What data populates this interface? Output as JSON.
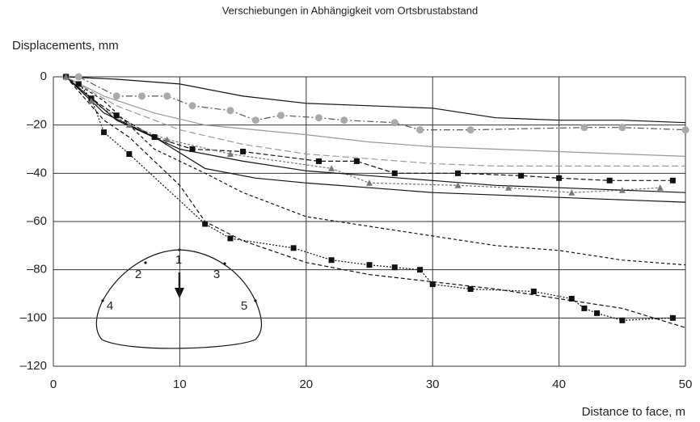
{
  "chart_data": {
    "type": "line",
    "title": "Verschiebungen in Abhängigkeit vom Ortsbrustabstand",
    "y_label": "Displacements, mm",
    "x_label": "Distance to face, m",
    "xlim": [
      0,
      50
    ],
    "ylim": [
      -120,
      0
    ],
    "xticks": [
      0,
      10,
      20,
      30,
      40,
      50
    ],
    "yticks": [
      0,
      {
        "value": -20,
        "label": "–20"
      },
      {
        "value": -40,
        "label": "–40"
      },
      {
        "value": -60,
        "label": "–60"
      },
      {
        "value": -80,
        "label": "–80"
      },
      {
        "value": -100,
        "label": "–100"
      },
      {
        "value": -120,
        "label": "–120"
      }
    ],
    "grid": true,
    "annotations": [
      "1",
      "2",
      "3",
      "4",
      "5"
    ],
    "series": [
      {
        "color": "#111",
        "dash": "2,2",
        "marker": "square",
        "x": [
          1,
          2,
          3,
          4,
          6,
          12,
          14,
          19,
          22,
          25,
          27,
          29,
          30,
          33,
          38,
          41,
          42,
          43,
          45,
          49
        ],
        "values": [
          0,
          -3,
          -9,
          -23,
          -32,
          -61,
          -67,
          -71,
          -76,
          -78,
          -79,
          -80,
          -86,
          -88,
          -89,
          -92,
          -96,
          -98,
          -101,
          -100
        ]
      },
      {
        "color": "#555",
        "dash": "8,3,2,3",
        "marker": "circle-gray",
        "x": [
          1,
          2,
          5,
          7,
          9,
          11,
          14,
          16,
          18,
          21,
          23,
          27,
          29,
          33,
          42,
          45,
          50
        ],
        "values": [
          0,
          0,
          -8,
          -8,
          -8,
          -12,
          -14,
          -18,
          -16,
          -17,
          -18,
          -19,
          -22,
          -22,
          -21,
          -21,
          -22
        ]
      },
      {
        "color": "#111",
        "dash": "6,3",
        "marker": "square",
        "x": [
          1,
          3,
          5,
          8,
          11,
          15,
          21,
          24,
          27,
          32,
          37,
          40,
          44,
          49
        ],
        "values": [
          0,
          -9,
          -16,
          -25,
          -30,
          -31,
          -35,
          -35,
          -40,
          -40,
          -41,
          -42,
          -43,
          -43
        ]
      },
      {
        "color": "#777",
        "dash": "3,2",
        "marker": "triangle",
        "x": [
          1,
          3,
          6,
          9,
          14,
          22,
          25,
          32,
          36,
          41,
          45,
          48
        ],
        "values": [
          0,
          -10,
          -20,
          -26,
          -32,
          -38,
          -44,
          -45,
          -46,
          -48,
          -47,
          -46
        ]
      },
      {
        "color": "#111",
        "dash": "5,3",
        "marker": "none",
        "x": [
          1,
          3,
          4,
          6,
          10,
          12,
          15,
          20,
          25,
          30,
          35,
          40,
          45,
          50
        ],
        "values": [
          0,
          -12,
          -18,
          -25,
          -45,
          -60,
          -68,
          -77,
          -82,
          -85,
          -88,
          -92,
          -96,
          -104
        ]
      },
      {
        "color": "#111",
        "dash": "4,3",
        "marker": "none",
        "x": [
          1,
          4,
          8,
          12,
          15,
          20,
          25,
          30,
          35,
          40,
          45,
          50
        ],
        "values": [
          0,
          -10,
          -30,
          -40,
          -48,
          -58,
          -62,
          -66,
          -70,
          -72,
          -76,
          -78
        ]
      },
      {
        "color": "#111",
        "dash": "none",
        "marker": "none",
        "x": [
          1,
          5,
          10,
          15,
          20,
          25,
          30,
          35,
          40,
          45,
          50
        ],
        "values": [
          0,
          -1,
          -3,
          -8,
          -11,
          -12,
          -13,
          -17,
          -18,
          -18,
          -19
        ]
      },
      {
        "color": "#999",
        "dash": "none",
        "marker": "none",
        "x": [
          1,
          4,
          8,
          12,
          16,
          20,
          25,
          30,
          35,
          40,
          45,
          50
        ],
        "values": [
          0,
          -8,
          -15,
          -20,
          -22,
          -24,
          -27,
          -29,
          -30,
          -31,
          -32,
          -33
        ]
      },
      {
        "color": "#111",
        "dash": "none",
        "marker": "none",
        "x": [
          1,
          4,
          8,
          12,
          16,
          20,
          25,
          30,
          35,
          40,
          45,
          50
        ],
        "values": [
          0,
          -15,
          -25,
          -38,
          -42,
          -44,
          -46,
          -48,
          -49,
          -50,
          -51,
          -52
        ]
      },
      {
        "color": "#111",
        "dash": "none",
        "marker": "none",
        "x": [
          1,
          5,
          10,
          15,
          20,
          25,
          30,
          35,
          40,
          45,
          50
        ],
        "values": [
          0,
          -18,
          -30,
          -35,
          -39,
          -41,
          -43,
          -45,
          -46,
          -47,
          -48
        ]
      },
      {
        "color": "#999",
        "dash": "8,4",
        "marker": "none",
        "x": [
          1,
          5,
          10,
          15,
          20,
          25,
          30,
          35,
          40,
          45,
          50
        ],
        "values": [
          0,
          -12,
          -22,
          -28,
          -32,
          -34,
          -36,
          -37,
          -37,
          -37,
          -37
        ]
      }
    ]
  }
}
